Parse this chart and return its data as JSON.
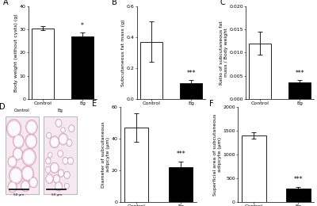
{
  "panel_A": {
    "title": "A",
    "ylabel": "Body weight (without cysts) (g)",
    "categories": [
      "Control",
      "Eg"
    ],
    "values": [
      30.5,
      27.0
    ],
    "errors": [
      0.8,
      1.5
    ],
    "colors": [
      "white",
      "black"
    ],
    "ylim": [
      0,
      40
    ],
    "yticks": [
      0,
      10,
      20,
      30,
      40
    ],
    "ytick_labels": [
      "0",
      "10",
      "20",
      "30",
      "40"
    ],
    "sig_labels": [
      "",
      "*"
    ]
  },
  "panel_B": {
    "title": "B",
    "ylabel": "Subcutaneous fat mass (g)",
    "categories": [
      "Control",
      "Eg"
    ],
    "values": [
      0.37,
      0.1
    ],
    "errors": [
      0.13,
      0.02
    ],
    "colors": [
      "white",
      "black"
    ],
    "ylim": [
      0,
      0.6
    ],
    "yticks": [
      0.0,
      0.2,
      0.4,
      0.6
    ],
    "ytick_labels": [
      "0.0",
      "0.2",
      "0.4",
      "0.6"
    ],
    "sig_labels": [
      "",
      "***"
    ]
  },
  "panel_C": {
    "title": "C",
    "ylabel": "Ratio of subcutaneous fat\nmass / Body weight",
    "categories": [
      "Control",
      "Eg"
    ],
    "values": [
      0.012,
      0.0035
    ],
    "errors": [
      0.0025,
      0.0005
    ],
    "colors": [
      "white",
      "black"
    ],
    "ylim": [
      0,
      0.02
    ],
    "yticks": [
      0.0,
      0.005,
      0.01,
      0.015,
      0.02
    ],
    "ytick_labels": [
      "0.000",
      "0.005",
      "0.010",
      "0.015",
      "0.020"
    ],
    "sig_labels": [
      "",
      "***"
    ]
  },
  "panel_E": {
    "title": "E",
    "ylabel": "Diameter of subcutaneous\nadipcyte (μm)",
    "categories": [
      "Control",
      "Eg"
    ],
    "values": [
      47.0,
      22.0
    ],
    "errors": [
      9.0,
      3.5
    ],
    "colors": [
      "white",
      "black"
    ],
    "ylim": [
      0,
      60
    ],
    "yticks": [
      0,
      20,
      40,
      60
    ],
    "ytick_labels": [
      "0",
      "20",
      "40",
      "60"
    ],
    "sig_labels": [
      "",
      "***"
    ]
  },
  "panel_F": {
    "title": "F",
    "ylabel": "Superficial area of subcutaneous\nadipcyte (μm)",
    "categories": [
      "Control",
      "Eg"
    ],
    "values": [
      1400,
      280
    ],
    "errors": [
      60,
      40
    ],
    "colors": [
      "white",
      "black"
    ],
    "ylim": [
      0,
      2000
    ],
    "yticks": [
      0,
      500,
      1000,
      1500,
      2000
    ],
    "ytick_labels": [
      "0",
      "500",
      "1000",
      "1500",
      "2000"
    ],
    "sig_labels": [
      "",
      "***"
    ]
  },
  "background_color": "#ffffff",
  "bar_edge_color": "black",
  "bar_width": 0.55,
  "fontsize_label": 4.5,
  "fontsize_tick": 4.5,
  "fontsize_title": 7,
  "fontsize_sig": 5.5,
  "cell_bg": "#faf0f3",
  "cell_fill": "#f8f0f5",
  "cell_edge": "#d4a0b8",
  "cell_border_bg": "#e8c0d0"
}
